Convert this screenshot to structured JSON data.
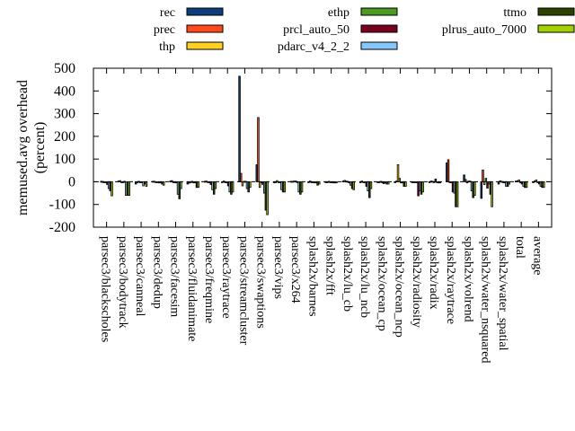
{
  "chart_data": {
    "type": "bar",
    "title": "",
    "xlabel": "",
    "ylabel": "memused.avg overhead",
    "ylabel_unit": "(percent)",
    "ylim": [
      -200,
      500
    ],
    "yticks": [
      -200,
      -100,
      0,
      100,
      200,
      300,
      400,
      500
    ],
    "grid": false,
    "legend_position": "top",
    "categories": [
      "parsec3/blackscholes",
      "parsec3/bodytrack",
      "parsec3/canneal",
      "parsec3/dedup",
      "parsec3/facesim",
      "parsec3/fluidanimate",
      "parsec3/freqmine",
      "parsec3/raytrace",
      "parsec3/streamcluster",
      "parsec3/swaptions",
      "parsec3/vips",
      "parsec3/x264",
      "splash2x/barnes",
      "splash2x/fft",
      "splash2x/lu_cb",
      "splash2x/lu_ncb",
      "splash2x/ocean_cp",
      "splash2x/ocean_ncp",
      "splash2x/radiosity",
      "splash2x/radix",
      "splash2x/raytrace",
      "splash2x/volrend",
      "splash2x/water_nsquared",
      "splash2x/water_spatial",
      "total",
      "average"
    ],
    "series": [
      {
        "name": "rec",
        "color": "#0b3e7a",
        "values": [
          2,
          3,
          -10,
          2,
          3,
          -10,
          2,
          -3,
          465,
          75,
          -2,
          2,
          -3,
          0,
          3,
          -3,
          -3,
          -3,
          -3,
          0,
          83,
          30,
          -73,
          -10,
          3,
          -3
        ]
      },
      {
        "name": "prec",
        "color": "#ff4a1c",
        "values": [
          1,
          5,
          -3,
          2,
          5,
          -6,
          3,
          3,
          37,
          283,
          0,
          2,
          3,
          0,
          6,
          3,
          0,
          3,
          0,
          3,
          97,
          10,
          52,
          4,
          4,
          3
        ]
      },
      {
        "name": "thp",
        "color": "#ffd020",
        "values": [
          0,
          0,
          2,
          0,
          0,
          0,
          0,
          0,
          -18,
          -25,
          5,
          3,
          -2,
          2,
          3,
          0,
          2,
          75,
          0,
          2,
          -3,
          -5,
          -12,
          2,
          8,
          8
        ]
      },
      {
        "name": "ethp",
        "color": "#4d9a21",
        "values": [
          0,
          0,
          0,
          0,
          0,
          2,
          0,
          0,
          2,
          -3,
          0,
          3,
          0,
          0,
          2,
          -2,
          0,
          15,
          0,
          0,
          0,
          3,
          15,
          0,
          0,
          0
        ]
      },
      {
        "name": "prcl_auto_50",
        "color": "#7a0020",
        "values": [
          -12,
          2,
          -2,
          -5,
          -5,
          -5,
          -12,
          -18,
          2,
          -12,
          0,
          0,
          -5,
          0,
          -5,
          -20,
          -8,
          -5,
          -62,
          12,
          -45,
          3,
          -28,
          -5,
          -10,
          -10
        ]
      },
      {
        "name": "pdarc_v4_2_2",
        "color": "#87c7ff",
        "values": [
          -30,
          -60,
          -18,
          -5,
          -55,
          0,
          -35,
          -45,
          -30,
          -50,
          -35,
          -45,
          -5,
          -5,
          -15,
          -40,
          -5,
          -5,
          -40,
          0,
          -50,
          -40,
          -10,
          -20,
          -20,
          -20
        ]
      },
      {
        "name": "ttmo",
        "color": "#2e4200",
        "values": [
          -40,
          -60,
          -10,
          -10,
          -75,
          -25,
          -55,
          -55,
          -45,
          -125,
          -45,
          -55,
          -15,
          -5,
          -30,
          -70,
          -10,
          -20,
          -55,
          -5,
          -110,
          -70,
          -55,
          -20,
          -25,
          -25
        ]
      },
      {
        "name": "plrus_auto_7000",
        "color": "#a3d000",
        "values": [
          -62,
          -60,
          -20,
          -15,
          -30,
          -25,
          -30,
          -45,
          -25,
          -145,
          -45,
          -45,
          -10,
          -5,
          -35,
          -30,
          -10,
          -20,
          -45,
          -5,
          -110,
          -60,
          -110,
          -10,
          -25,
          -25
        ]
      }
    ]
  }
}
